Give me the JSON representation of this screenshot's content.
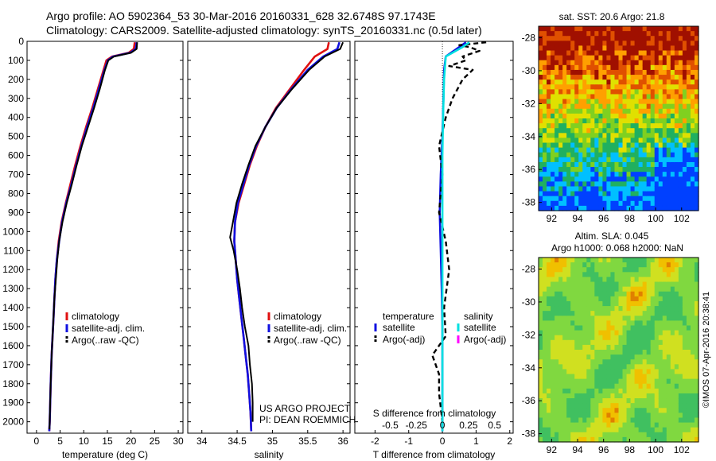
{
  "figure": {
    "title_line1": "Argo profile: AO 5902364_53 30-Mar-2016 20160331_628 32.6748S 97.1743E",
    "title_line2": "Climatology: CARS2009. Satellite-adjusted climatology: synTS_20160331.nc (0.5d later)",
    "project_line1": "US ARGO PROJECT",
    "project_line2": "PI: DEAN ROEMMICH",
    "side_stamp": "©IMOS 07-Apr-2016 20:38:41"
  },
  "colors": {
    "climatology": "#e01010",
    "satellite": "#1010e0",
    "argo": "#000000",
    "sat_salinity": "#00e0e0",
    "argo_salinity": "#ff00ff"
  },
  "chart_data": [
    {
      "id": "temperature",
      "type": "line",
      "xlabel": "temperature (deg C)",
      "ylabel": "",
      "xlim": [
        -2,
        31
      ],
      "ylim": [
        2060,
        0
      ],
      "xticks": [
        0,
        5,
        10,
        15,
        20,
        25,
        30
      ],
      "yticks": [
        0,
        100,
        200,
        300,
        400,
        500,
        600,
        700,
        800,
        900,
        1000,
        1100,
        1200,
        1300,
        1400,
        1500,
        1600,
        1700,
        1800,
        1900,
        2000
      ],
      "legend": {
        "placement": "bottom-center",
        "entries": [
          "climatology",
          "satellite-adj. clim.",
          "Argo(..raw -QC)"
        ]
      },
      "series": [
        {
          "name": "climatology",
          "color": "#e01010",
          "points": [
            [
              20.8,
              5
            ],
            [
              20.6,
              40
            ],
            [
              19.5,
              60
            ],
            [
              16,
              80
            ],
            [
              14.8,
              100
            ],
            [
              14.2,
              150
            ],
            [
              13,
              250
            ],
            [
              11.8,
              350
            ],
            [
              10.5,
              450
            ],
            [
              9.3,
              550
            ],
            [
              8.2,
              650
            ],
            [
              7.2,
              750
            ],
            [
              6.2,
              850
            ],
            [
              5.3,
              950
            ],
            [
              4.7,
              1050
            ],
            [
              4.3,
              1150
            ],
            [
              4,
              1250
            ],
            [
              3.8,
              1350
            ],
            [
              3.6,
              1450
            ],
            [
              3.4,
              1550
            ],
            [
              3.2,
              1650
            ],
            [
              3,
              1800
            ],
            [
              2.9,
              1900
            ],
            [
              2.8,
              2000
            ],
            [
              2.7,
              2050
            ]
          ]
        },
        {
          "name": "satellite-adj. clim.",
          "color": "#1010e0",
          "points": [
            [
              21.2,
              5
            ],
            [
              21,
              40
            ],
            [
              19.8,
              60
            ],
            [
              16.2,
              80
            ],
            [
              15.1,
              100
            ],
            [
              14.4,
              150
            ],
            [
              13.2,
              250
            ],
            [
              12,
              350
            ],
            [
              10.7,
              450
            ],
            [
              9.5,
              550
            ],
            [
              8.4,
              650
            ],
            [
              7.4,
              750
            ],
            [
              6.3,
              850
            ],
            [
              5.4,
              950
            ],
            [
              4.8,
              1050
            ],
            [
              4.3,
              1150
            ],
            [
              4,
              1250
            ],
            [
              3.8,
              1350
            ],
            [
              3.6,
              1450
            ],
            [
              3.4,
              1550
            ],
            [
              3.2,
              1650
            ],
            [
              3,
              1800
            ],
            [
              2.9,
              1900
            ],
            [
              2.8,
              2000
            ],
            [
              2.7,
              2050
            ]
          ]
        },
        {
          "name": "Argo(..raw -QC)",
          "color": "#000000",
          "points": [
            [
              21.3,
              5
            ],
            [
              21.2,
              40
            ],
            [
              20,
              60
            ],
            [
              16.4,
              80
            ],
            [
              15.2,
              100
            ],
            [
              14.5,
              150
            ],
            [
              13.4,
              250
            ],
            [
              12.2,
              350
            ],
            [
              10.9,
              450
            ],
            [
              9.6,
              550
            ],
            [
              8.5,
              650
            ],
            [
              7.5,
              750
            ],
            [
              6.4,
              850
            ],
            [
              5.5,
              950
            ],
            [
              4.8,
              1050
            ],
            [
              4.4,
              1150
            ],
            [
              4.1,
              1250
            ],
            [
              3.8,
              1350
            ],
            [
              3.6,
              1450
            ],
            [
              3.4,
              1550
            ],
            [
              3.2,
              1650
            ],
            [
              3,
              1800
            ],
            [
              2.9,
              1900
            ],
            [
              2.8,
              2000
            ],
            [
              2.75,
              2040
            ]
          ]
        }
      ]
    },
    {
      "id": "salinity",
      "type": "line",
      "xlabel": "salinity",
      "ylabel": "",
      "xlim": [
        33.8,
        36.1
      ],
      "ylim": [
        2060,
        0
      ],
      "xticks": [
        34,
        34.5,
        35,
        35.5,
        36
      ],
      "legend": {
        "placement": "bottom-right",
        "entries": [
          "climatology",
          "satellite-adj. clim.",
          "Argo(..raw -QC)"
        ]
      },
      "series": [
        {
          "name": "climatology",
          "color": "#e01010",
          "points": [
            [
              35.8,
              5
            ],
            [
              35.78,
              40
            ],
            [
              35.6,
              80
            ],
            [
              35.45,
              150
            ],
            [
              35.25,
              250
            ],
            [
              35.05,
              350
            ],
            [
              34.9,
              450
            ],
            [
              34.78,
              550
            ],
            [
              34.68,
              650
            ],
            [
              34.6,
              750
            ],
            [
              34.52,
              850
            ],
            [
              34.47,
              950
            ],
            [
              34.46,
              1050
            ],
            [
              34.48,
              1150
            ],
            [
              34.5,
              1250
            ],
            [
              34.53,
              1350
            ],
            [
              34.56,
              1450
            ],
            [
              34.59,
              1550
            ],
            [
              34.62,
              1650
            ],
            [
              34.65,
              1750
            ],
            [
              34.67,
              1850
            ],
            [
              34.69,
              1950
            ],
            [
              34.7,
              2050
            ]
          ]
        },
        {
          "name": "satellite-adj. clim.",
          "color": "#1010e0",
          "points": [
            [
              35.95,
              5
            ],
            [
              35.92,
              40
            ],
            [
              35.72,
              80
            ],
            [
              35.5,
              150
            ],
            [
              35.27,
              250
            ],
            [
              35.06,
              350
            ],
            [
              34.9,
              450
            ],
            [
              34.77,
              550
            ],
            [
              34.67,
              650
            ],
            [
              34.59,
              750
            ],
            [
              34.51,
              850
            ],
            [
              34.47,
              950
            ],
            [
              34.46,
              1050
            ],
            [
              34.48,
              1150
            ],
            [
              34.5,
              1250
            ],
            [
              34.53,
              1350
            ],
            [
              34.56,
              1450
            ],
            [
              34.59,
              1550
            ],
            [
              34.62,
              1650
            ],
            [
              34.65,
              1750
            ],
            [
              34.67,
              1850
            ],
            [
              34.69,
              1950
            ],
            [
              34.7,
              2050
            ]
          ]
        },
        {
          "name": "Argo(..raw -QC)",
          "color": "#000000",
          "points": [
            [
              36,
              5
            ],
            [
              35.96,
              40
            ],
            [
              35.74,
              80
            ],
            [
              35.52,
              150
            ],
            [
              35.28,
              250
            ],
            [
              35.06,
              350
            ],
            [
              34.9,
              450
            ],
            [
              34.76,
              550
            ],
            [
              34.66,
              650
            ],
            [
              34.57,
              750
            ],
            [
              34.49,
              850
            ],
            [
              34.44,
              950
            ],
            [
              34.4,
              1030
            ],
            [
              34.45,
              1100
            ],
            [
              34.5,
              1200
            ],
            [
              34.54,
              1300
            ],
            [
              34.57,
              1400
            ],
            [
              34.61,
              1500
            ],
            [
              34.66,
              1600
            ],
            [
              34.68,
              1700
            ],
            [
              34.71,
              1800
            ],
            [
              34.72,
              1900
            ],
            [
              34.72,
              2000
            ]
          ]
        }
      ]
    },
    {
      "id": "difference",
      "type": "line",
      "xlabel": "T difference from climatology",
      "xlabel2": "S difference from climatology",
      "xlim": [
        -2.6,
        2.1
      ],
      "ylim": [
        2060,
        0
      ],
      "xticks": [
        -2,
        -1,
        0,
        1,
        2
      ],
      "xtick_labels": [
        "-2",
        "-1",
        "0",
        "1",
        "2"
      ],
      "xticks2_labels": [
        "-0.5",
        "-0.25",
        "0",
        "0.25",
        "0.5"
      ],
      "legend": {
        "placement": "bottom-center",
        "temperature_title": "temperature",
        "salinity_title": "salinity",
        "temperature_entries": [
          "satellite",
          "Argo(-adj)"
        ],
        "salinity_entries": [
          "satellite",
          "Argo(-adj)"
        ]
      },
      "series": [
        {
          "name": "T satellite",
          "color": "#1010e0",
          "points": [
            [
              0.7,
              5
            ],
            [
              0.5,
              30
            ],
            [
              0.1,
              80
            ],
            [
              0.05,
              150
            ],
            [
              0.03,
              300
            ],
            [
              0,
              500
            ],
            [
              -0.05,
              700
            ],
            [
              -0.08,
              900
            ],
            [
              -0.05,
              1100
            ],
            [
              -0.02,
              1300
            ],
            [
              0,
              1500
            ],
            [
              0,
              1700
            ],
            [
              0,
              1900
            ],
            [
              0,
              2050
            ]
          ]
        },
        {
          "name": "T Argo(-adj)",
          "color": "#000000",
          "points": [
            [
              1.3,
              5
            ],
            [
              0.5,
              20
            ],
            [
              0.8,
              30
            ],
            [
              1.1,
              50
            ],
            [
              0.6,
              80
            ],
            [
              0.7,
              100
            ],
            [
              0.2,
              130
            ],
            [
              0.9,
              150
            ],
            [
              0.6,
              200
            ],
            [
              0.3,
              300
            ],
            [
              0.1,
              400
            ],
            [
              -0.1,
              550
            ],
            [
              0,
              700
            ],
            [
              -0.1,
              900
            ],
            [
              0.1,
              1050
            ],
            [
              0.2,
              1200
            ],
            [
              0.05,
              1400
            ],
            [
              0.1,
              1550
            ],
            [
              -0.3,
              1650
            ],
            [
              -0.1,
              1750
            ],
            [
              -0.1,
              1850
            ],
            [
              0,
              2000
            ]
          ]
        },
        {
          "name": "S satellite",
          "color": "#00e0e0",
          "points": [
            [
              0.8,
              5
            ],
            [
              0.6,
              30
            ],
            [
              0.1,
              80
            ],
            [
              0.05,
              200
            ],
            [
              0.02,
              400
            ],
            [
              0,
              600
            ],
            [
              0,
              800
            ],
            [
              0,
              1000
            ],
            [
              0,
              1200
            ],
            [
              0,
              1400
            ],
            [
              0,
              1600
            ],
            [
              0,
              1800
            ],
            [
              0,
              2050
            ]
          ]
        }
      ]
    },
    {
      "id": "sst_map",
      "type": "heatmap",
      "title": "sat. SST: 20.6  Argo: 21.8",
      "xticks": [
        92,
        94,
        96,
        98,
        100,
        102
      ],
      "yticks": [
        -28,
        -30,
        -32,
        -34,
        -36,
        -38
      ]
    },
    {
      "id": "sla_map",
      "type": "heatmap",
      "title_line1": "Altim. SLA: 0.045",
      "title_line2": "Argo h1000: 0.068  h2000: NaN",
      "xticks": [
        92,
        94,
        96,
        98,
        100,
        102
      ],
      "yticks": [
        -28,
        -30,
        -32,
        -34,
        -36,
        -38
      ]
    }
  ]
}
